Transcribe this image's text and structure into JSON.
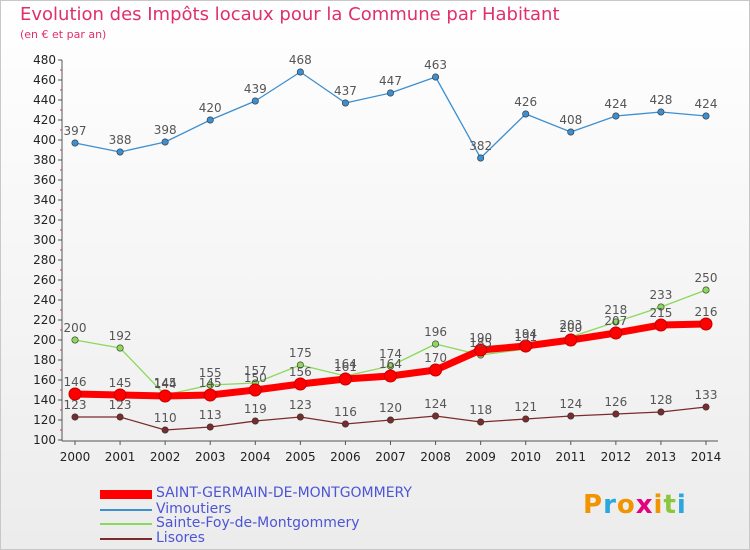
{
  "title": "Evolution des Impôts locaux pour la Commune par Habitant",
  "subtitle": "(en € et par an)",
  "logo": {
    "text": "Proxiti",
    "colors": [
      "#f29300",
      "#29a7df",
      "#f29300",
      "#e5007e",
      "#f29300",
      "#8cc63e",
      "#29a7df"
    ]
  },
  "chart_data": {
    "type": "line",
    "x": [
      2000,
      2001,
      2002,
      2003,
      2004,
      2005,
      2006,
      2007,
      2008,
      2009,
      2010,
      2011,
      2012,
      2013,
      2014
    ],
    "ylim": [
      100,
      480
    ],
    "yticks": [
      100,
      120,
      140,
      160,
      180,
      200,
      220,
      240,
      260,
      280,
      300,
      320,
      340,
      360,
      380,
      400,
      420,
      440,
      460,
      480
    ],
    "grid": false,
    "legend_position": "bottom-left",
    "series": [
      {
        "name": "SAINT-GERMAIN-DE-MONTGOMMERY",
        "color": "#ff0000",
        "values": [
          146,
          145,
          144,
          145,
          150,
          156,
          161,
          164,
          170,
          190,
          194,
          200,
          207,
          215,
          216
        ]
      },
      {
        "name": "Vimoutiers",
        "color": "#3d8fd0",
        "values": [
          397,
          388,
          398,
          420,
          439,
          468,
          437,
          447,
          463,
          382,
          426,
          408,
          424,
          428,
          424
        ]
      },
      {
        "name": "Sainte-Foy-de-Montgommery",
        "color": "#8cd85a",
        "values": [
          200,
          192,
          145,
          155,
          157,
          175,
          164,
          174,
          196,
          185,
          191,
          203,
          218,
          233,
          250
        ]
      },
      {
        "name": "Lisores",
        "color": "#7a2c2c",
        "values": [
          123,
          123,
          110,
          113,
          119,
          123,
          116,
          120,
          124,
          118,
          121,
          124,
          126,
          128,
          133
        ]
      }
    ]
  }
}
